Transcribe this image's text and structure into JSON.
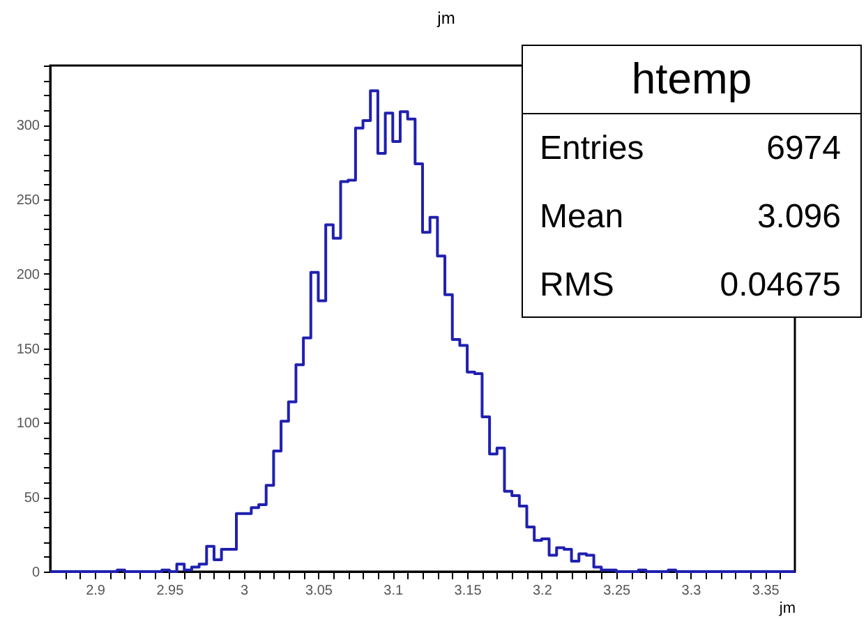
{
  "chart_data": {
    "type": "histogram",
    "title": "jm",
    "xlabel": "jm",
    "color": "#2020b0",
    "bins": [
      2.87,
      2.875,
      2.88,
      2.885,
      2.89,
      2.895,
      2.9,
      2.905,
      2.91,
      2.915,
      2.92,
      2.925,
      2.93,
      2.935,
      2.94,
      2.945,
      2.95,
      2.955,
      2.96,
      2.965,
      2.97,
      2.975,
      2.98,
      2.985,
      2.99,
      2.995,
      3,
      3.005,
      3.01,
      3.015,
      3.02,
      3.025,
      3.03,
      3.035,
      3.04,
      3.045,
      3.05,
      3.055,
      3.06,
      3.065,
      3.07,
      3.075,
      3.08,
      3.085,
      3.09,
      3.095,
      3.1,
      3.105,
      3.11,
      3.115,
      3.12,
      3.125,
      3.13,
      3.135,
      3.14,
      3.145,
      3.15,
      3.155,
      3.16,
      3.165,
      3.17,
      3.175,
      3.18,
      3.185,
      3.19,
      3.195,
      3.2,
      3.205,
      3.21,
      3.215,
      3.22,
      3.225,
      3.23,
      3.235,
      3.24,
      3.245,
      3.25,
      3.255,
      3.26,
      3.265,
      3.27,
      3.275,
      3.28,
      3.285,
      3.29,
      3.295,
      3.3,
      3.305,
      3.31,
      3.315,
      3.32,
      3.325,
      3.33,
      3.335,
      3.34,
      3.345,
      3.35,
      3.355,
      3.36,
      3.365,
      3.37
    ],
    "values": [
      0,
      0,
      0,
      0,
      0,
      0,
      0,
      0,
      0,
      1,
      0,
      0,
      0,
      0,
      0,
      1,
      0,
      5,
      1,
      3,
      5,
      17,
      8,
      15,
      15,
      39,
      39,
      43,
      45,
      58,
      81,
      101,
      114,
      139,
      157,
      201,
      182,
      233,
      224,
      262,
      263,
      298,
      303,
      323,
      281,
      308,
      289,
      309,
      304,
      274,
      228,
      238,
      212,
      186,
      156,
      152,
      134,
      133,
      104,
      79,
      83,
      54,
      51,
      44,
      30,
      21,
      22,
      11,
      16,
      15,
      7,
      12,
      11,
      3,
      1,
      1,
      0,
      0,
      0,
      1,
      0,
      0,
      0,
      1,
      0,
      0,
      0,
      0,
      0,
      0,
      0,
      0,
      0,
      0,
      0,
      0,
      0,
      0,
      0,
      0
    ],
    "xlim": [
      2.87,
      3.37
    ],
    "xticks": [
      {
        "value": 2.88,
        "label": null
      },
      {
        "value": 2.89,
        "label": null
      },
      2.9,
      {
        "value": 2.91,
        "label": null
      },
      {
        "value": 2.92,
        "label": null
      },
      {
        "value": 2.93,
        "label": null
      },
      {
        "value": 2.94,
        "label": null
      },
      2.95,
      {
        "value": 2.96,
        "label": null
      },
      {
        "value": 2.97,
        "label": null
      },
      {
        "value": 2.98,
        "label": null
      },
      {
        "value": 2.99,
        "label": null
      },
      3,
      {
        "value": 3.01,
        "label": null
      },
      {
        "value": 3.02,
        "label": null
      },
      {
        "value": 3.03,
        "label": null
      },
      {
        "value": 3.04,
        "label": null
      },
      3.05,
      {
        "value": 3.06,
        "label": null
      },
      {
        "value": 3.07,
        "label": null
      },
      {
        "value": 3.08,
        "label": null
      },
      {
        "value": 3.09,
        "label": null
      },
      3.1,
      {
        "value": 3.11,
        "label": null
      },
      {
        "value": 3.12,
        "label": null
      },
      {
        "value": 3.13,
        "label": null
      },
      {
        "value": 3.14,
        "label": null
      },
      3.15,
      {
        "value": 3.16,
        "label": null
      },
      {
        "value": 3.17,
        "label": null
      },
      {
        "value": 3.18,
        "label": null
      },
      {
        "value": 3.19,
        "label": null
      },
      3.2,
      {
        "value": 3.21,
        "label": null
      },
      {
        "value": 3.22,
        "label": null
      },
      {
        "value": 3.23,
        "label": null
      },
      {
        "value": 3.24,
        "label": null
      },
      3.25,
      {
        "value": 3.26,
        "label": null
      },
      {
        "value": 3.27,
        "label": null
      },
      {
        "value": 3.28,
        "label": null
      },
      {
        "value": 3.29,
        "label": null
      },
      3.3,
      {
        "value": 3.31,
        "label": null
      },
      {
        "value": 3.32,
        "label": null
      },
      {
        "value": 3.33,
        "label": null
      },
      {
        "value": 3.34,
        "label": null
      },
      3.35,
      {
        "value": 3.36,
        "label": null
      }
    ],
    "ylim": [
      0,
      340
    ],
    "yticks": [
      0,
      {
        "value": 10,
        "label": null
      },
      {
        "value": 20,
        "label": null
      },
      {
        "value": 30,
        "label": null
      },
      {
        "value": 40,
        "label": null
      },
      50,
      {
        "value": 60,
        "label": null
      },
      {
        "value": 70,
        "label": null
      },
      {
        "value": 80,
        "label": null
      },
      {
        "value": 90,
        "label": null
      },
      100,
      {
        "value": 110,
        "label": null
      },
      {
        "value": 120,
        "label": null
      },
      {
        "value": 130,
        "label": null
      },
      {
        "value": 140,
        "label": null
      },
      150,
      {
        "value": 160,
        "label": null
      },
      {
        "value": 170,
        "label": null
      },
      {
        "value": 180,
        "label": null
      },
      {
        "value": 190,
        "label": null
      },
      200,
      {
        "value": 210,
        "label": null
      },
      {
        "value": 220,
        "label": null
      },
      {
        "value": 230,
        "label": null
      },
      {
        "value": 240,
        "label": null
      },
      250,
      {
        "value": 260,
        "label": null
      },
      {
        "value": 270,
        "label": null
      },
      {
        "value": 280,
        "label": null
      },
      {
        "value": 290,
        "label": null
      },
      300,
      {
        "value": 310,
        "label": null
      },
      {
        "value": 320,
        "label": null
      },
      {
        "value": 330,
        "label": null
      },
      {
        "value": 340,
        "label": null
      }
    ],
    "annotations": [
      "htemp",
      "Entries",
      "6974",
      "Mean",
      "3.096",
      "RMS",
      "0.04675"
    ]
  }
}
